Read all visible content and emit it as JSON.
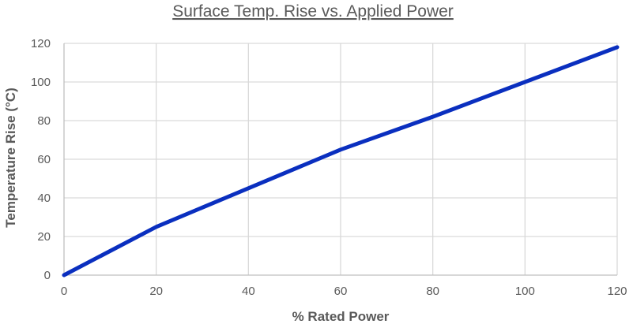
{
  "chart_data": {
    "type": "line",
    "title": "Surface Temp. Rise vs. Applied Power",
    "xlabel": "% Rated Power",
    "ylabel": "Temperature Rise (°C)",
    "xlim": [
      0,
      120
    ],
    "ylim": [
      0,
      120
    ],
    "x_ticks": [
      0,
      20,
      40,
      60,
      80,
      100,
      120
    ],
    "y_ticks": [
      0,
      20,
      40,
      60,
      80,
      100,
      120
    ],
    "grid": true,
    "series": [
      {
        "color": "#0a2fbf",
        "x": [
          0,
          20,
          40,
          60,
          80,
          100,
          120
        ],
        "y": [
          0,
          25,
          45,
          65,
          82,
          100,
          118
        ]
      }
    ]
  }
}
